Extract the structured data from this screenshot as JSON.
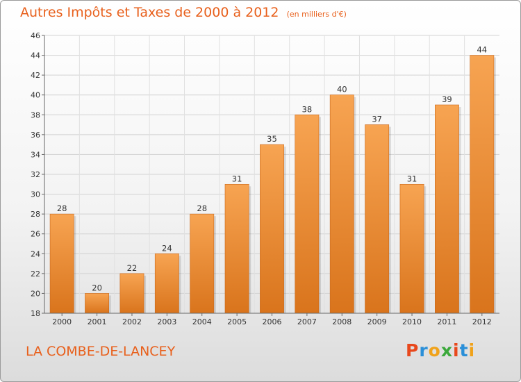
{
  "chart_data": {
    "type": "bar",
    "title": "Autres Impôts et Taxes de 2000 à 2012",
    "subtitle": "(en milliers d'€)",
    "categories": [
      "2000",
      "2001",
      "2002",
      "2003",
      "2004",
      "2005",
      "2006",
      "2007",
      "2008",
      "2009",
      "2010",
      "2011",
      "2012"
    ],
    "values": [
      28,
      20,
      22,
      24,
      28,
      31,
      35,
      38,
      40,
      37,
      31,
      39,
      44
    ],
    "ylim": [
      18,
      46
    ],
    "yticks": [
      18,
      20,
      22,
      24,
      26,
      28,
      30,
      32,
      34,
      36,
      38,
      40,
      42,
      44,
      46
    ],
    "grid": true,
    "bar_color_top": "#f7a452",
    "bar_color_bottom": "#d9741c"
  },
  "footer": {
    "commune": "LA COMBE-DE-LANCEY"
  },
  "logo": {
    "letters": [
      "P",
      "r",
      "o",
      "x",
      "i",
      "t",
      "i"
    ],
    "colors": [
      "#e8481c",
      "#2a8fd8",
      "#f0a21a",
      "#3aa83a",
      "#e8481c",
      "#2a8fd8",
      "#f0a21a"
    ]
  },
  "colors": {
    "accent": "#e8601c"
  }
}
